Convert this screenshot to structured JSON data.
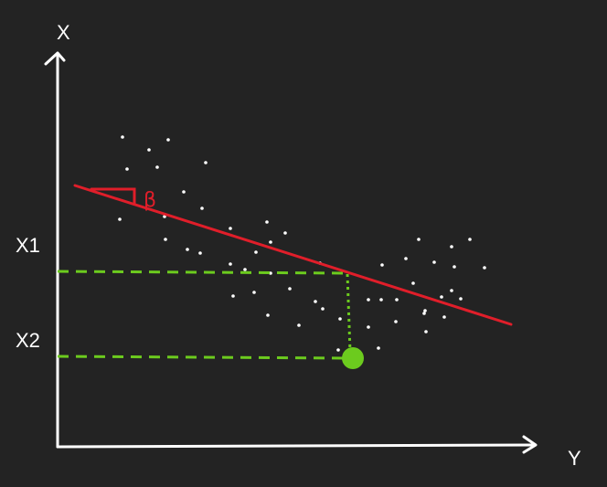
{
  "labels": {
    "x_axis": "X",
    "y_axis": "Y",
    "x1": "X1",
    "x2": "X2",
    "slope": "β"
  },
  "colors": {
    "background": "#232323",
    "axes": "#ffffff",
    "points": "#ffffff",
    "regression_line": "#e01e2a",
    "projection": "#6ccb1e",
    "highlight_point": "#6ccb1e"
  }
}
